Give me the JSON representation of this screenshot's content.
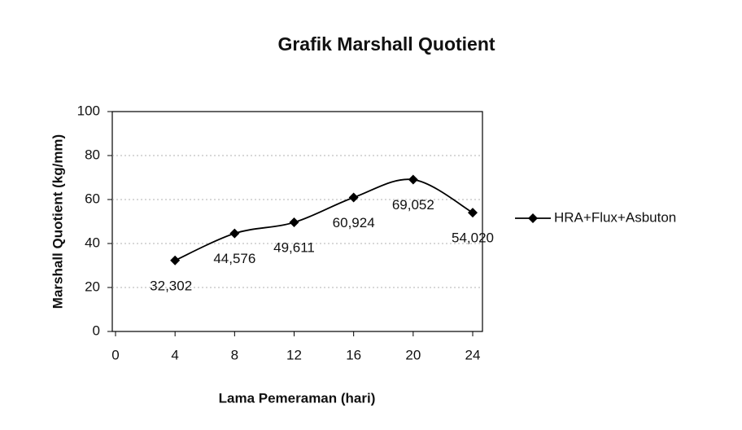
{
  "chart_data": {
    "type": "line",
    "title": "Grafik Marshall Quotient",
    "xlabel": "Lama Pemeraman (hari)",
    "ylabel": "Marshall Quotient (kg/mm)",
    "x": [
      4,
      8,
      12,
      16,
      20,
      24
    ],
    "series": [
      {
        "name": "HRA+Flux+Asbuton",
        "color": "#000000",
        "values": [
          32.302,
          44.576,
          49.611,
          60.924,
          69.052,
          54.02
        ],
        "value_labels": [
          "32,302",
          "44,576",
          "49,611",
          "60,924",
          "69,052",
          "54,020"
        ]
      }
    ],
    "xlim": [
      0,
      24
    ],
    "xticks": [
      0,
      4,
      8,
      12,
      16,
      20,
      24
    ],
    "ylim": [
      0,
      100
    ],
    "yticks": [
      0,
      20,
      40,
      60,
      80,
      100
    ],
    "grid": true,
    "legend": "right"
  }
}
